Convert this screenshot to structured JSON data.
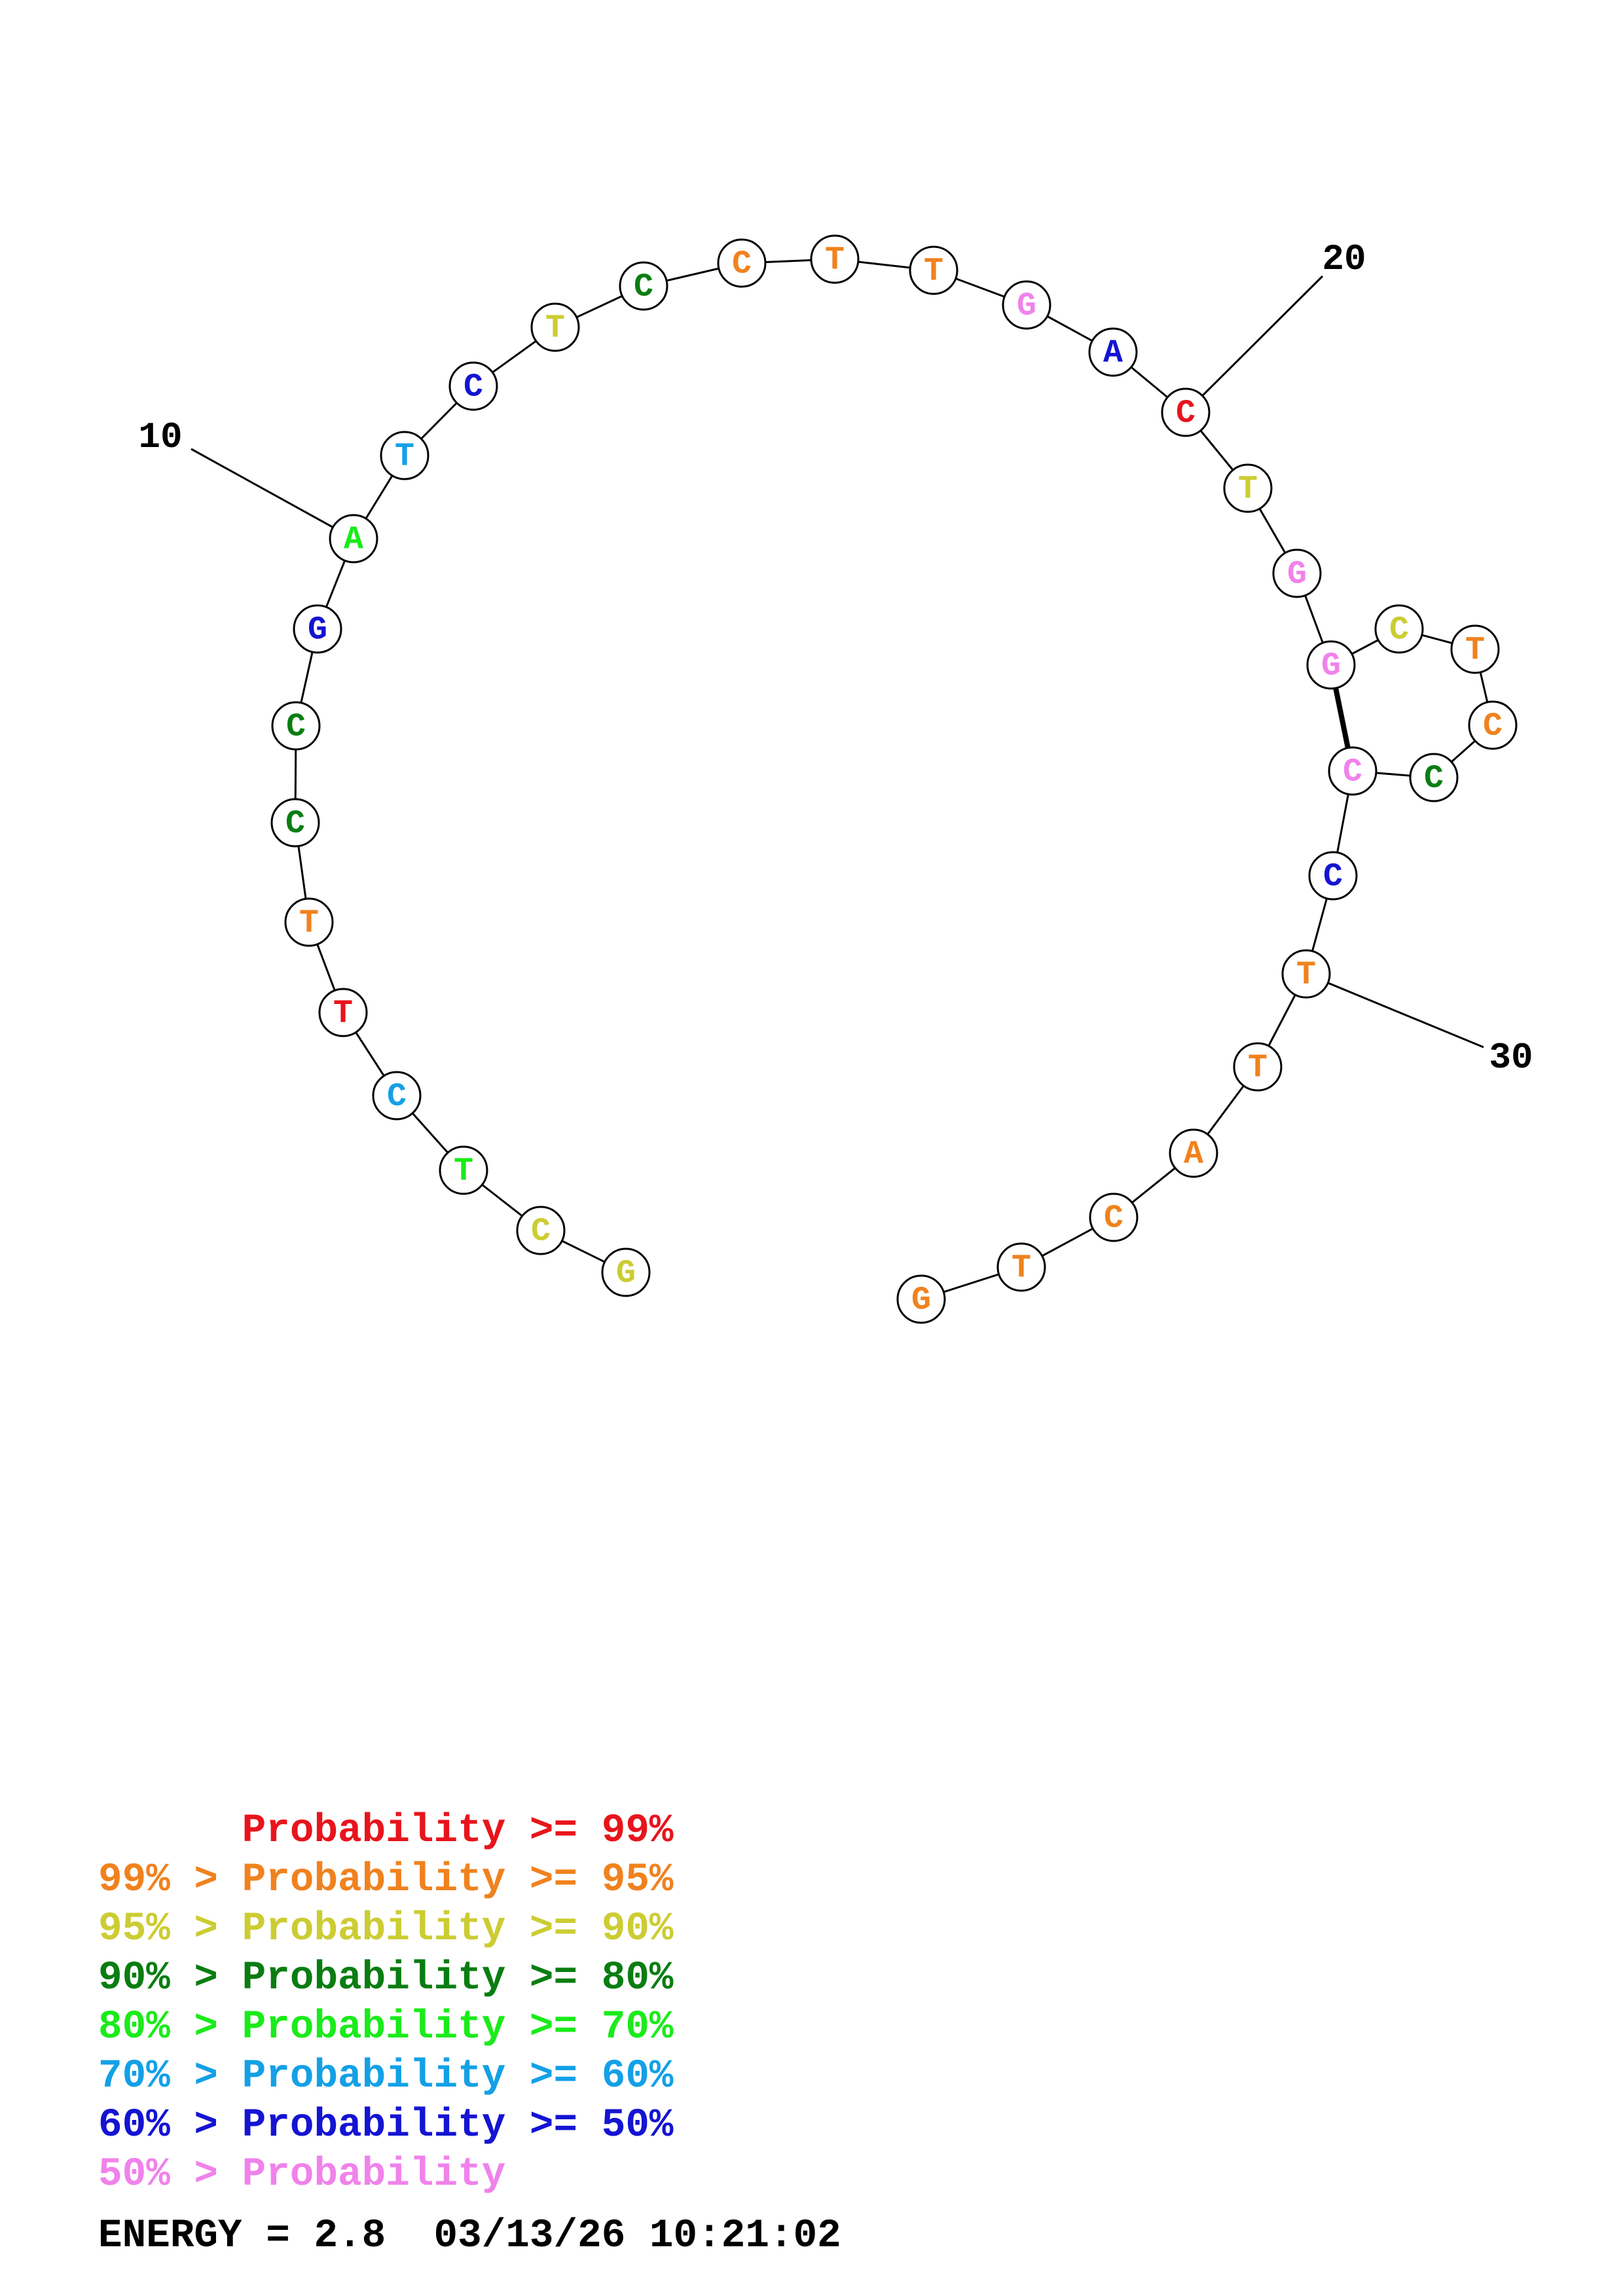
{
  "colors": {
    "red": "#e8141c",
    "orange": "#f0821e",
    "yellow": "#cccc33",
    "darkgreen": "#0a7d12",
    "green": "#1aeb1a",
    "cyan": "#14a0e6",
    "blue": "#1414d2",
    "pink": "#f082eb"
  },
  "sequence": [
    {
      "base": "G",
      "color": "yellow"
    },
    {
      "base": "C",
      "color": "yellow"
    },
    {
      "base": "T",
      "color": "green"
    },
    {
      "base": "C",
      "color": "cyan"
    },
    {
      "base": "T",
      "color": "red"
    },
    {
      "base": "T",
      "color": "orange"
    },
    {
      "base": "C",
      "color": "darkgreen"
    },
    {
      "base": "C",
      "color": "darkgreen"
    },
    {
      "base": "G",
      "color": "blue"
    },
    {
      "base": "A",
      "color": "green"
    },
    {
      "base": "T",
      "color": "cyan"
    },
    {
      "base": "C",
      "color": "blue"
    },
    {
      "base": "T",
      "color": "yellow"
    },
    {
      "base": "C",
      "color": "darkgreen"
    },
    {
      "base": "C",
      "color": "orange"
    },
    {
      "base": "T",
      "color": "orange"
    },
    {
      "base": "T",
      "color": "orange"
    },
    {
      "base": "G",
      "color": "pink"
    },
    {
      "base": "A",
      "color": "blue"
    },
    {
      "base": "C",
      "color": "red"
    },
    {
      "base": "T",
      "color": "yellow"
    },
    {
      "base": "G",
      "color": "pink"
    },
    {
      "base": "G",
      "color": "pink"
    },
    {
      "base": "C",
      "color": "yellow"
    },
    {
      "base": "T",
      "color": "orange"
    },
    {
      "base": "C",
      "color": "orange"
    },
    {
      "base": "C",
      "color": "darkgreen"
    },
    {
      "base": "C",
      "color": "pink"
    },
    {
      "base": "C",
      "color": "blue"
    },
    {
      "base": "T",
      "color": "orange"
    },
    {
      "base": "T",
      "color": "orange"
    },
    {
      "base": "A",
      "color": "orange"
    },
    {
      "base": "C",
      "color": "orange"
    },
    {
      "base": "T",
      "color": "orange"
    },
    {
      "base": "G",
      "color": "orange"
    }
  ],
  "pairs": [
    [
      23,
      28
    ]
  ],
  "index_labels": [
    {
      "text": "10",
      "index": 10
    },
    {
      "text": "20",
      "index": 20
    },
    {
      "text": "30",
      "index": 30
    }
  ],
  "legend": [
    {
      "text": "      Probability >= 99%",
      "color": "red"
    },
    {
      "text": "99% > Probability >= 95%",
      "color": "orange"
    },
    {
      "text": "95% > Probability >= 90%",
      "color": "yellow"
    },
    {
      "text": "90% > Probability >= 80%",
      "color": "darkgreen"
    },
    {
      "text": "80% > Probability >= 70%",
      "color": "green"
    },
    {
      "text": "70% > Probability >= 60%",
      "color": "cyan"
    },
    {
      "text": "60% > Probability >= 50%",
      "color": "blue"
    },
    {
      "text": "50% > Probability",
      "color": "pink"
    }
  ],
  "energy_line": "ENERGY = 2.8  03/13/26 10:21:02"
}
